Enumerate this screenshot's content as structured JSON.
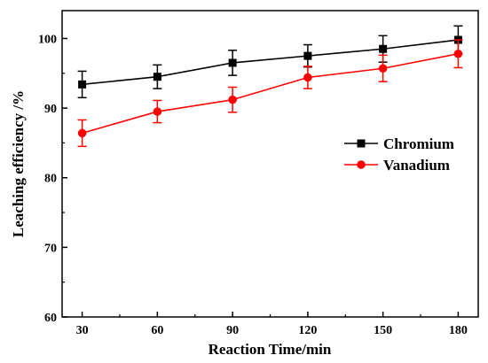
{
  "chart_data": {
    "type": "line",
    "title": "",
    "xlabel": "Reaction Time/min",
    "ylabel": "Leaching efficiency /%",
    "x": [
      30,
      60,
      90,
      120,
      150,
      180
    ],
    "x_ticks": [
      "30",
      "60",
      "90",
      "120",
      "150",
      "180"
    ],
    "y_ticks": [
      "60",
      "70",
      "80",
      "90",
      "100"
    ],
    "xlim": [
      22,
      188
    ],
    "ylim": [
      60,
      104
    ],
    "grid": false,
    "legend_position": "right",
    "series": [
      {
        "name": "Chromium",
        "color": "#000000",
        "marker": "square",
        "values": [
          93.4,
          94.5,
          96.5,
          97.5,
          98.5,
          99.8
        ],
        "errors": [
          1.9,
          1.7,
          1.8,
          1.6,
          1.9,
          2.0
        ]
      },
      {
        "name": "Vanadium",
        "color": "#ff0000",
        "marker": "circle",
        "values": [
          86.4,
          89.5,
          91.2,
          94.4,
          95.7,
          97.8
        ],
        "errors": [
          1.9,
          1.6,
          1.8,
          1.6,
          1.9,
          2.0
        ]
      }
    ]
  }
}
